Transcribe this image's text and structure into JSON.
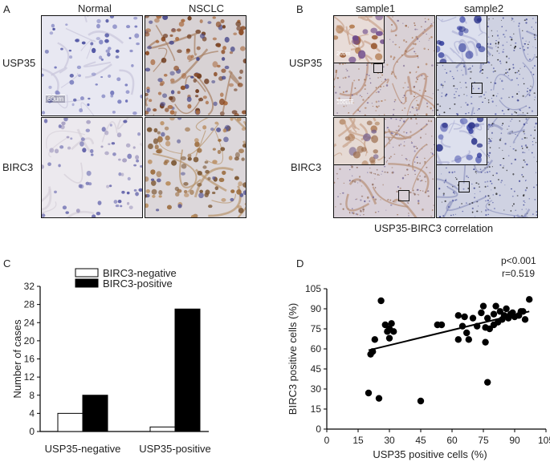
{
  "panelA": {
    "letter": "A",
    "col_headers": [
      "Normal",
      "NSCLC"
    ],
    "row_labels": [
      "USP35",
      "BIRC3"
    ],
    "scale_bar": "60um"
  },
  "panelB": {
    "letter": "B",
    "col_headers": [
      "sample1",
      "sample2"
    ],
    "row_labels": [
      "USP35",
      "BIRC3"
    ],
    "inset_scale": "20um",
    "scale_bar": "100um",
    "caption": "USP35-BIRC3 correlation"
  },
  "panelC": {
    "letter": "C",
    "colors": {
      "negative": "#ffffff",
      "positive": "#000000"
    }
  },
  "panelD": {
    "letter": "D",
    "stat_p": "p<0.001",
    "stat_r": "r=0.519"
  },
  "chart_data": [
    {
      "type": "bar",
      "title": "",
      "xlabel": "",
      "ylabel": "Number of cases",
      "categories": [
        "USP35-negative",
        "USP35-positive"
      ],
      "series": [
        {
          "name": "BIRC3-negative",
          "values": [
            4,
            1
          ]
        },
        {
          "name": "BIRC3-positive",
          "values": [
            8,
            27
          ]
        }
      ],
      "ylim": [
        0,
        32
      ],
      "yticks": [
        0,
        4,
        8,
        12,
        16,
        20,
        24,
        28,
        32
      ],
      "legend": "top-left",
      "grid": false
    },
    {
      "type": "scatter",
      "title": "",
      "xlabel": "USP35 positive cells (%)",
      "ylabel": "BIRC3 positive cells (%)",
      "xlim": [
        0,
        105
      ],
      "ylim": [
        0,
        105
      ],
      "xticks": [
        0,
        15,
        30,
        45,
        60,
        75,
        90,
        105
      ],
      "yticks": [
        0,
        15,
        30,
        45,
        60,
        75,
        90,
        105
      ],
      "points": [
        [
          20,
          27
        ],
        [
          21,
          56
        ],
        [
          22,
          58
        ],
        [
          23,
          67
        ],
        [
          25,
          23
        ],
        [
          26,
          96
        ],
        [
          28,
          78
        ],
        [
          29,
          73
        ],
        [
          30,
          68
        ],
        [
          30,
          75
        ],
        [
          31,
          79
        ],
        [
          32,
          73
        ],
        [
          45,
          21
        ],
        [
          53,
          78
        ],
        [
          55,
          78
        ],
        [
          63,
          85
        ],
        [
          63,
          67
        ],
        [
          65,
          77
        ],
        [
          66,
          84
        ],
        [
          67,
          72
        ],
        [
          68,
          67
        ],
        [
          70,
          83
        ],
        [
          72,
          77
        ],
        [
          74,
          87
        ],
        [
          75,
          92
        ],
        [
          76,
          65
        ],
        [
          76,
          76
        ],
        [
          77,
          35
        ],
        [
          77,
          83
        ],
        [
          78,
          75
        ],
        [
          80,
          78
        ],
        [
          80,
          86
        ],
        [
          81,
          92
        ],
        [
          82,
          80
        ],
        [
          83,
          88
        ],
        [
          84,
          82
        ],
        [
          85,
          85
        ],
        [
          86,
          90
        ],
        [
          87,
          83
        ],
        [
          88,
          86
        ],
        [
          89,
          87
        ],
        [
          90,
          84
        ],
        [
          92,
          85
        ],
        [
          93,
          88
        ],
        [
          94,
          88
        ],
        [
          95,
          82
        ],
        [
          97,
          97
        ]
      ],
      "trendline": {
        "x0": 20,
        "y0": 59,
        "x1": 97,
        "y1": 88
      },
      "grid": false
    }
  ]
}
